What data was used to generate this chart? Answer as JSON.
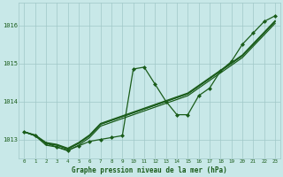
{
  "title": "Graphe pression niveau de la mer (hPa)",
  "background_color": "#c8e8e8",
  "grid_color": "#a0c8c8",
  "line_color": "#1a5c1a",
  "x_ticks": [
    0,
    1,
    2,
    3,
    4,
    5,
    6,
    7,
    8,
    9,
    10,
    11,
    12,
    13,
    14,
    15,
    16,
    17,
    18,
    19,
    20,
    21,
    22,
    23
  ],
  "ylim": [
    1012.5,
    1016.6
  ],
  "yticks": [
    1013,
    1014,
    1015,
    1016
  ],
  "series": [
    {
      "y": [
        1013.2,
        1013.1,
        1012.9,
        1012.85,
        1012.75,
        1012.9,
        1013.1,
        1013.4,
        1013.5,
        1013.6,
        1013.7,
        1013.8,
        1013.9,
        1014.0,
        1014.1,
        1014.2,
        1014.4,
        1014.6,
        1014.8,
        1015.0,
        1015.2,
        1015.5,
        1015.8,
        1016.1
      ],
      "marker": false,
      "lw": 0.9
    },
    {
      "y": [
        1013.2,
        1013.1,
        1012.85,
        1012.8,
        1012.7,
        1012.85,
        1013.05,
        1013.35,
        1013.45,
        1013.55,
        1013.65,
        1013.75,
        1013.85,
        1013.95,
        1014.05,
        1014.15,
        1014.35,
        1014.55,
        1014.75,
        1014.95,
        1015.15,
        1015.45,
        1015.75,
        1016.05
      ],
      "marker": false,
      "lw": 0.9
    },
    {
      "y": [
        1013.2,
        1013.12,
        1012.92,
        1012.87,
        1012.77,
        1012.92,
        1013.12,
        1013.42,
        1013.52,
        1013.62,
        1013.72,
        1013.82,
        1013.92,
        1014.02,
        1014.12,
        1014.22,
        1014.42,
        1014.62,
        1014.82,
        1015.02,
        1015.22,
        1015.52,
        1015.82,
        1016.12
      ],
      "marker": false,
      "lw": 0.9
    },
    {
      "y": [
        1013.2,
        1013.1,
        1012.9,
        1012.85,
        1012.75,
        1012.9,
        1013.1,
        1013.4,
        1013.5,
        1013.6,
        1013.7,
        1013.8,
        1013.9,
        1014.0,
        1014.1,
        1014.2,
        1014.4,
        1014.6,
        1014.8,
        1015.0,
        1015.2,
        1015.5,
        1015.8,
        1016.1
      ],
      "marker": false,
      "lw": 0.9
    },
    {
      "y": [
        1013.2,
        1013.1,
        1012.9,
        1012.8,
        1012.72,
        1012.83,
        1012.95,
        1013.0,
        1013.05,
        1013.1,
        1014.85,
        1014.9,
        1014.45,
        1014.0,
        1013.65,
        1013.65,
        1014.15,
        1014.35,
        1014.8,
        1015.05,
        1015.5,
        1015.8,
        1016.1,
        1016.25
      ],
      "marker": true,
      "lw": 0.9
    }
  ],
  "marker": "D",
  "marker_size": 2.0
}
